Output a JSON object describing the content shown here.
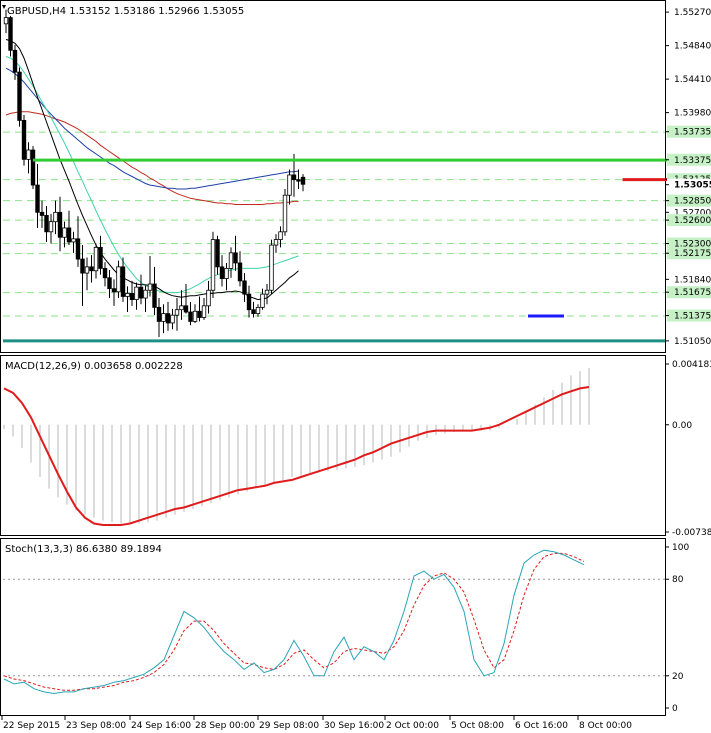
{
  "colors": {
    "background": "#ffffff",
    "frame": "#000000",
    "support_line": "#1f8f83",
    "green_level": "#33cc33",
    "red_level": "#e01b1b",
    "blue_level": "#1a1aff",
    "ma_black": "#000000",
    "ma_blue": "#1f3fa8",
    "ma_red": "#c0291d",
    "ma_aqua": "#3fd3a8",
    "macd_signal": "#e01b1b",
    "histogram": "#b8b8b8",
    "stoch_main": "#2aa5b5",
    "stoch_signal": "#e01b1b",
    "price_label_bg": "#c6f0c6"
  },
  "chart_data": [
    {
      "type": "candlestick",
      "title": "GBPUSD,H4  1.53152 1.53186 1.52966 1.53055",
      "ylim": [
        1.5092,
        1.554
      ],
      "y_ticks": [
        "1.55270",
        "1.54840",
        "1.54410",
        "1.53980"
      ],
      "level_labels": [
        "1.53735",
        "1.53375",
        "1.53125",
        "1.53055",
        "1.52850",
        "1.52700",
        "1.52600",
        "1.52300",
        "1.52175",
        "1.51840",
        "1.51675",
        "1.51375",
        "1.51050"
      ],
      "highlight_labels": [
        "1.53735",
        "1.53375",
        "1.53125",
        "1.52850",
        "1.52600",
        "1.52300",
        "1.52175",
        "1.51675",
        "1.51375",
        "1.51050"
      ],
      "current_price_label": "1.53055",
      "dashed_levels": [
        1.5373,
        1.5312,
        1.5285,
        1.526,
        1.523,
        1.5217,
        1.5167,
        1.5137
      ],
      "support_level": 1.5105,
      "green_level": {
        "value": 1.5337,
        "from": 6,
        "to": 148
      },
      "red_level": {
        "value": 1.5312,
        "from": 137,
        "to": 150
      },
      "blue_level": {
        "value": 1.5137,
        "from": 116,
        "to": 124
      },
      "x_labels": [
        "22 Sep 2015",
        "23 Sep 08:00",
        "24 Sep 16:00",
        "28 Sep 00:00",
        "29 Sep 08:00",
        "30 Sep 16:00",
        "2 Oct 00:00",
        "5 Oct 08:00",
        "6 Oct 16:00",
        "8 Oct 00:00"
      ],
      "ohlc": [
        [
          1.5512,
          1.553,
          1.55,
          1.552
        ],
        [
          1.552,
          1.5522,
          1.547,
          1.5478
        ],
        [
          1.5478,
          1.5485,
          1.544,
          1.545
        ],
        [
          1.545,
          1.5456,
          1.538,
          1.5388
        ],
        [
          1.5388,
          1.5395,
          1.533,
          1.5338
        ],
        [
          1.5338,
          1.536,
          1.532,
          1.535
        ],
        [
          1.535,
          1.5355,
          1.53,
          1.5305
        ],
        [
          1.5305,
          1.5332,
          1.525,
          1.527
        ],
        [
          1.527,
          1.5285,
          1.525,
          1.5266
        ],
        [
          1.5266,
          1.5278,
          1.5232,
          1.5245
        ],
        [
          1.5245,
          1.5268,
          1.523,
          1.5258
        ],
        [
          1.5258,
          1.5285,
          1.5242,
          1.527
        ],
        [
          1.527,
          1.529,
          1.522,
          1.5238
        ],
        [
          1.5238,
          1.5258,
          1.5225,
          1.525
        ],
        [
          1.525,
          1.5272,
          1.5228,
          1.5232
        ],
        [
          1.5232,
          1.5245,
          1.5218,
          1.5236
        ],
        [
          1.5236,
          1.5265,
          1.52,
          1.521
        ],
        [
          1.521,
          1.5228,
          1.515,
          1.5192
        ],
        [
          1.5192,
          1.5212,
          1.517,
          1.52
        ],
        [
          1.52,
          1.5215,
          1.518,
          1.5195
        ],
        [
          1.5195,
          1.523,
          1.5185,
          1.5225
        ],
        [
          1.5225,
          1.524,
          1.519,
          1.5198
        ],
        [
          1.5198,
          1.5206,
          1.5175,
          1.5186
        ],
        [
          1.5186,
          1.5196,
          1.516,
          1.5172
        ],
        [
          1.5172,
          1.5184,
          1.515,
          1.5168
        ],
        [
          1.5168,
          1.5208,
          1.516,
          1.52
        ],
        [
          1.52,
          1.5212,
          1.5155,
          1.5162
        ],
        [
          1.5162,
          1.5175,
          1.5142,
          1.5166
        ],
        [
          1.5166,
          1.5182,
          1.515,
          1.5158
        ],
        [
          1.5158,
          1.518,
          1.5145,
          1.5174
        ],
        [
          1.5174,
          1.519,
          1.5152,
          1.516
        ],
        [
          1.516,
          1.5176,
          1.5142,
          1.517
        ],
        [
          1.517,
          1.5214,
          1.5162,
          1.5178
        ],
        [
          1.5178,
          1.52,
          1.5138,
          1.5148
        ],
        [
          1.5148,
          1.516,
          1.511,
          1.513
        ],
        [
          1.513,
          1.5152,
          1.5115,
          1.514
        ],
        [
          1.514,
          1.5155,
          1.5118,
          1.5128
        ],
        [
          1.5128,
          1.5146,
          1.512,
          1.5138
        ],
        [
          1.5138,
          1.516,
          1.5118,
          1.5145
        ],
        [
          1.5145,
          1.517,
          1.5132,
          1.515
        ],
        [
          1.515,
          1.5178,
          1.514,
          1.5142
        ],
        [
          1.5142,
          1.5155,
          1.5125,
          1.513
        ],
        [
          1.513,
          1.5152,
          1.5128,
          1.5143
        ],
        [
          1.5143,
          1.5162,
          1.513,
          1.5135
        ],
        [
          1.5135,
          1.516,
          1.5132,
          1.515
        ],
        [
          1.515,
          1.5182,
          1.514,
          1.517
        ],
        [
          1.517,
          1.5245,
          1.516,
          1.5235
        ],
        [
          1.5235,
          1.524,
          1.519,
          1.52
        ],
        [
          1.52,
          1.5215,
          1.5175,
          1.5185
        ],
        [
          1.5185,
          1.5205,
          1.517,
          1.5198
        ],
        [
          1.5198,
          1.5225,
          1.5186,
          1.5218
        ],
        [
          1.5218,
          1.524,
          1.5195,
          1.5205
        ],
        [
          1.5205,
          1.522,
          1.5175,
          1.5182
        ],
        [
          1.5182,
          1.5192,
          1.5155,
          1.5165
        ],
        [
          1.5165,
          1.5176,
          1.5135,
          1.5145
        ],
        [
          1.5145,
          1.5155,
          1.5135,
          1.514
        ],
        [
          1.514,
          1.5152,
          1.5136,
          1.5148
        ],
        [
          1.5148,
          1.5172,
          1.5145,
          1.5165
        ],
        [
          1.5165,
          1.5178,
          1.5152,
          1.517
        ],
        [
          1.517,
          1.5235,
          1.5165,
          1.5228
        ],
        [
          1.5228,
          1.5242,
          1.5218,
          1.5235
        ],
        [
          1.5235,
          1.5252,
          1.5225,
          1.5245
        ],
        [
          1.5245,
          1.53,
          1.524,
          1.5292
        ],
        [
          1.5292,
          1.5325,
          1.528,
          1.5318
        ],
        [
          1.5318,
          1.5345,
          1.529,
          1.5312
        ],
        [
          1.5312,
          1.5325,
          1.53,
          1.531
        ],
        [
          1.5315,
          1.5319,
          1.5297,
          1.5306
        ]
      ],
      "ma_black": [
        1.5492,
        1.549,
        1.5487,
        1.548,
        1.5468,
        1.5452,
        1.5435,
        1.5418,
        1.5402,
        1.5386,
        1.537,
        1.5354,
        1.5338,
        1.5324,
        1.531,
        1.5295,
        1.528,
        1.5266,
        1.5253,
        1.524,
        1.5228,
        1.5218,
        1.521,
        1.5203,
        1.5196,
        1.519,
        1.5186,
        1.5183,
        1.518,
        1.5178,
        1.5177,
        1.5177,
        1.5176,
        1.5175,
        1.5172,
        1.5168,
        1.5165,
        1.5163,
        1.5162,
        1.5161,
        1.5162,
        1.5163,
        1.5163,
        1.5164,
        1.5165,
        1.5166,
        1.5166,
        1.5167,
        1.5167,
        1.5168,
        1.5168,
        1.5169,
        1.5168,
        1.5166,
        1.5162,
        1.516,
        1.5158,
        1.5159,
        1.516,
        1.5165,
        1.517,
        1.5175,
        1.518,
        1.5186,
        1.519,
        1.5195
      ],
      "ma_blue": [
        1.5455,
        1.5452,
        1.5448,
        1.5443,
        1.5437,
        1.543,
        1.5423,
        1.5416,
        1.5409,
        1.5402,
        1.5396,
        1.539,
        1.5384,
        1.5378,
        1.5373,
        1.5368,
        1.5363,
        1.5358,
        1.5353,
        1.5349,
        1.5345,
        1.5341,
        1.5337,
        1.5333,
        1.533,
        1.5326,
        1.5322,
        1.5319,
        1.5316,
        1.5313,
        1.531,
        1.5307,
        1.5305,
        1.5304,
        1.5303,
        1.5302,
        1.5301,
        1.5301,
        1.53,
        1.53,
        1.53,
        1.5301,
        1.5301,
        1.5302,
        1.5303,
        1.5304,
        1.5305,
        1.5306,
        1.5307,
        1.5308,
        1.5309,
        1.531,
        1.5311,
        1.5312,
        1.5313,
        1.5314,
        1.5315,
        1.5316,
        1.5317,
        1.5318,
        1.5319,
        1.532,
        1.5321,
        1.5322,
        1.5322,
        1.5323
      ],
      "ma_red": [
        1.5395,
        1.5397,
        1.5398,
        1.5399,
        1.5399,
        1.5399,
        1.5398,
        1.5397,
        1.5396,
        1.5394,
        1.5392,
        1.539,
        1.5388,
        1.5386,
        1.5383,
        1.538,
        1.5377,
        1.5373,
        1.5369,
        1.5365,
        1.5361,
        1.5356,
        1.5352,
        1.5348,
        1.5344,
        1.534,
        1.5336,
        1.5332,
        1.5328,
        1.5325,
        1.5321,
        1.5318,
        1.5314,
        1.5311,
        1.5307,
        1.5304,
        1.53,
        1.5297,
        1.5294,
        1.5292,
        1.529,
        1.5288,
        1.5287,
        1.5286,
        1.5285,
        1.5284,
        1.5283,
        1.5282,
        1.5282,
        1.5281,
        1.5281,
        1.528,
        1.528,
        1.528,
        1.528,
        1.528,
        1.528,
        1.528,
        1.5281,
        1.5281,
        1.5282,
        1.5282,
        1.5283,
        1.5283,
        1.5284,
        1.5284
      ],
      "ma_aqua": [
        1.547,
        1.5468,
        1.5464,
        1.5458,
        1.545,
        1.5441,
        1.5432,
        1.5422,
        1.5412,
        1.5402,
        1.5392,
        1.5381,
        1.537,
        1.5359,
        1.5347,
        1.5335,
        1.5322,
        1.531,
        1.5297,
        1.5285,
        1.5272,
        1.526,
        1.5248,
        1.5237,
        1.5226,
        1.5216,
        1.5207,
        1.5199,
        1.5192,
        1.5185,
        1.518,
        1.5176,
        1.5173,
        1.5171,
        1.5169,
        1.5168,
        1.5167,
        1.5167,
        1.5167,
        1.5168,
        1.517,
        1.5172,
        1.5175,
        1.5178,
        1.5182,
        1.5185,
        1.5188,
        1.519,
        1.5192,
        1.5194,
        1.5196,
        1.5197,
        1.5198,
        1.5198,
        1.5198,
        1.5198,
        1.5198,
        1.5199,
        1.52,
        1.5202,
        1.5204,
        1.5206,
        1.5208,
        1.521,
        1.5212,
        1.5214
      ]
    },
    {
      "type": "macd",
      "title": "MACD(12,26,9) 0.003658 0.002228",
      "y_ticks": [
        "0.004183",
        "0.00",
        "-0.007384"
      ],
      "ylim": [
        -0.007384,
        0.004183
      ],
      "histogram": [
        -0.0003,
        -0.0008,
        -0.0016,
        -0.0026,
        -0.0036,
        -0.0044,
        -0.005,
        -0.0055,
        -0.0059,
        -0.0062,
        -0.0064,
        -0.0066,
        -0.0067,
        -0.0068,
        -0.0068,
        -0.0068,
        -0.0067,
        -0.0066,
        -0.0064,
        -0.0062,
        -0.006,
        -0.0058,
        -0.0056,
        -0.0054,
        -0.0052,
        -0.005,
        -0.0048,
        -0.0046,
        -0.0044,
        -0.0042,
        -0.004,
        -0.0038,
        -0.0036,
        -0.0035,
        -0.0034,
        -0.0033,
        -0.0032,
        -0.0031,
        -0.003,
        -0.0029,
        -0.0028,
        -0.0026,
        -0.0024,
        -0.0022,
        -0.0019,
        -0.0015,
        -0.0011,
        -0.0009,
        -0.0007,
        -0.0006,
        -0.0005,
        -0.0004,
        -0.0004,
        -0.0004,
        -0.0004,
        -0.0002,
        0.0,
        0.0004,
        0.0009,
        0.0014,
        0.0019,
        0.0024,
        0.0029,
        0.0034,
        0.0037,
        0.0039
      ],
      "signal": [
        0.0025,
        0.0022,
        0.0015,
        0.0005,
        -0.0008,
        -0.0021,
        -0.0034,
        -0.0046,
        -0.0057,
        -0.0064,
        -0.0068,
        -0.0069,
        -0.0069,
        -0.0069,
        -0.0068,
        -0.0066,
        -0.0064,
        -0.0062,
        -0.006,
        -0.0058,
        -0.0057,
        -0.0055,
        -0.0053,
        -0.0051,
        -0.0049,
        -0.0047,
        -0.0045,
        -0.0044,
        -0.0043,
        -0.0042,
        -0.004,
        -0.0039,
        -0.0038,
        -0.0036,
        -0.0034,
        -0.0032,
        -0.003,
        -0.0028,
        -0.0026,
        -0.0024,
        -0.0021,
        -0.0019,
        -0.0016,
        -0.0013,
        -0.0011,
        -0.0009,
        -0.0007,
        -0.0005,
        -0.0004,
        -0.0004,
        -0.0004,
        -0.0004,
        -0.0004,
        -0.0003,
        -0.0002,
        0.0,
        0.0003,
        0.0006,
        0.0009,
        0.0012,
        0.0015,
        0.0018,
        0.0021,
        0.0023,
        0.0025,
        0.0026
      ]
    },
    {
      "type": "stochastic",
      "title": "Stoch(13,3,3) 86.6380 89.1894",
      "y_ticks": [
        "100",
        "80",
        "20",
        "0"
      ],
      "ylim": [
        0,
        100
      ],
      "main": [
        18,
        15,
        16,
        12,
        10,
        9,
        10,
        10,
        12,
        13,
        14,
        16,
        17,
        19,
        21,
        25,
        30,
        45,
        60,
        56,
        50,
        42,
        35,
        30,
        24,
        28,
        22,
        24,
        30,
        42,
        32,
        20,
        20,
        35,
        44,
        30,
        38,
        35,
        30,
        42,
        60,
        82,
        85,
        80,
        83,
        75,
        60,
        30,
        20,
        22,
        40,
        70,
        90,
        95,
        98,
        97,
        95,
        92,
        89
      ],
      "signal": [
        20,
        18,
        17,
        15,
        13,
        12,
        11,
        11,
        12,
        12,
        13,
        14,
        16,
        17,
        19,
        22,
        27,
        36,
        48,
        54,
        54,
        48,
        40,
        34,
        28,
        27,
        25,
        24,
        27,
        34,
        36,
        30,
        25,
        28,
        35,
        37,
        36,
        35,
        34,
        38,
        48,
        64,
        76,
        82,
        84,
        80,
        72,
        55,
        36,
        25,
        30,
        48,
        70,
        86,
        94,
        96,
        96,
        94,
        91
      ]
    }
  ]
}
